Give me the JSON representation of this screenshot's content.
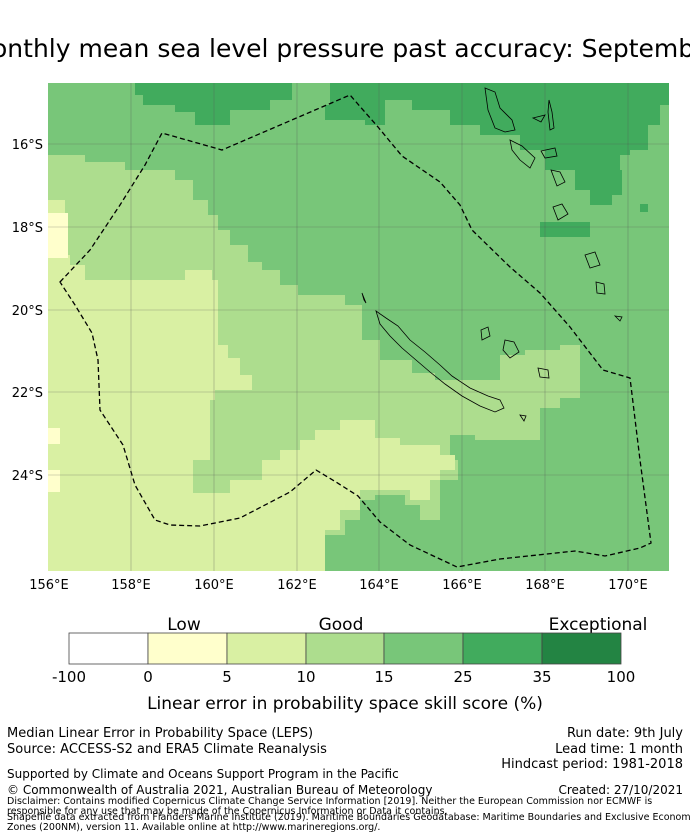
{
  "title": "onthly mean sea level pressure past accuracy: Septemb",
  "map": {
    "lat_labels": [
      "16°S",
      "18°S",
      "20°S",
      "22°S",
      "24°S"
    ],
    "lon_labels": [
      "156°E",
      "158°E",
      "160°E",
      "162°E",
      "164°E",
      "166°E",
      "168°E",
      "170°E"
    ],
    "lon_range": [
      156,
      171
    ],
    "lat_range": [
      -14.5,
      -26.3
    ],
    "colors": [
      "#ffffff",
      "#ffffcc",
      "#d9f0a3",
      "#addd8e",
      "#78c679",
      "#41ab5d",
      "#238443"
    ]
  },
  "colorbar": {
    "categories": [
      "Low",
      "Good",
      "Exceptional"
    ],
    "boundaries": [
      "-100",
      "0",
      "5",
      "10",
      "15",
      "25",
      "35",
      "100"
    ],
    "label": "Linear error in probability space skill score (%)"
  },
  "info": {
    "line1": "Median Linear Error in Probability Space (LEPS)",
    "line2": "Source: ACCESS-S2 and ERA5 Climate Reanalysis",
    "run_date": "Run date: 9th July",
    "lead_time": "Lead time: 1 month",
    "hindcast": "Hindcast period: 1981-2018",
    "support": "Supported by Climate and Oceans Support Program in the Pacific",
    "copyright": "© Commonwealth of Australia 2021, Australian Bureau of Meteorology",
    "created": "Created: 27/10/2021",
    "disclaimer1": "Disclaimer: Contains modified Copernicus Climate Change Service Information [2019]. Neither the European Commission nor ECMWF is",
    "disclaimer2": "responsible for any use that may be made of the Copernicus Information or Data it contains.",
    "disclaimer3": "Shapefile data extracted from Flanders Marine Institute (2019). Maritime Boundaries Geodatabase: Maritime Boundaries and Exclusive Economic",
    "disclaimer4": "Zones (200NM), version 11. Available online at http://www.marineregions.org/."
  }
}
